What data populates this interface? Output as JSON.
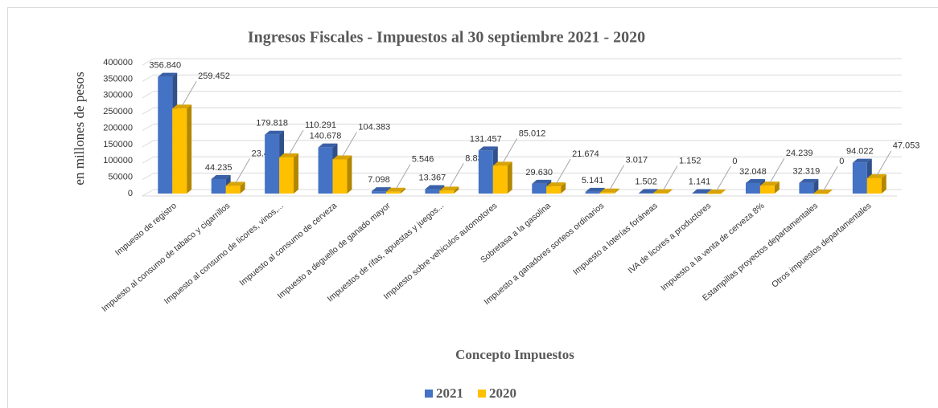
{
  "chart_data": {
    "type": "bar3d",
    "title": "Ingresos Fiscales - Impuestos  al 30 septiembre  2021 - 2020",
    "y_label": "en millones  de pesos",
    "x_label": "Concepto Impuestos",
    "categories": [
      "Impuesto de registro",
      "Impuesto al consumo de tabaco y cigarrillos",
      "Impuesto al consumo de licores, vinos,...",
      "Impuesto al consumo de cerveza",
      "Impuesto a deguello de ganado mayor",
      "Impuestos de rifas, apuestas y juegos...",
      "Impuesto sobre vehiculos automotores",
      "Sobretasa a la gasolina",
      "Impuesto a ganadores sorteos ordinarios",
      "Impuesto a loterías foráneas",
      "IVA de licores a productores",
      "Impuesto a la venta de cerveza 8%",
      "Estampillas proyectos departamentales",
      "Otros impuestos departamentales"
    ],
    "series": [
      {
        "name": "2021",
        "color": "#4472c4",
        "values": [
          356840,
          44235,
          179818,
          140678,
          7098,
          13367,
          131457,
          29630,
          5141,
          1502,
          1141,
          32048,
          32319,
          94022
        ],
        "value_labels": [
          "356.840",
          "44.235",
          "179.818",
          "140.678",
          "7.098",
          "13.367",
          "131.457",
          "29.630",
          "5.141",
          "1.502",
          "1.141",
          "32.048",
          "32.319",
          "94.022"
        ]
      },
      {
        "name": "2020",
        "color": "#ffc000",
        "values": [
          259452,
          23475,
          110291,
          104383,
          5546,
          8835,
          85012,
          21674,
          3017,
          1152,
          0,
          24239,
          0,
          47053
        ],
        "value_labels": [
          "259.452",
          "23.475",
          "110.291",
          "104.383",
          "5.546",
          "8.835",
          "85.012",
          "21.674",
          "3.017",
          "1.152",
          "0",
          "24.239",
          "0",
          "47.053"
        ]
      }
    ],
    "ylim": [
      0,
      400000
    ],
    "yticks": [
      0,
      50000,
      100000,
      150000,
      200000,
      250000,
      300000,
      350000,
      400000
    ],
    "grid": true,
    "legend": "bottom"
  }
}
